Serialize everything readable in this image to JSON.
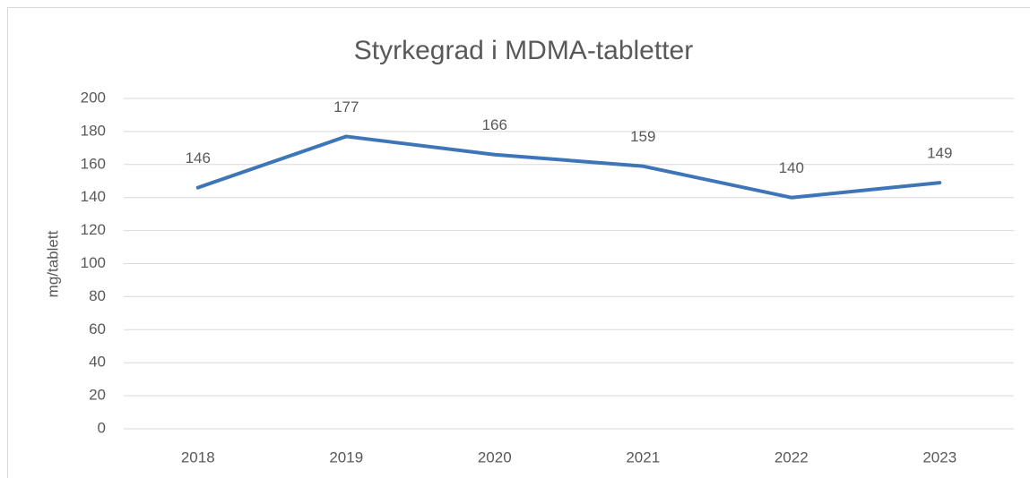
{
  "chart_data": {
    "type": "line",
    "title": "Styrkegrad i MDMA-tabletter",
    "y_label": "mg/tablett",
    "categories": [
      "2018",
      "2019",
      "2020",
      "2021",
      "2022",
      "2023"
    ],
    "values": [
      146,
      177,
      166,
      159,
      140,
      149
    ],
    "color": "#3e75b8",
    "ylim": [
      0,
      200
    ],
    "yticks": [
      0,
      20,
      40,
      60,
      80,
      100,
      120,
      140,
      160,
      180,
      200
    ],
    "grid": true
  }
}
